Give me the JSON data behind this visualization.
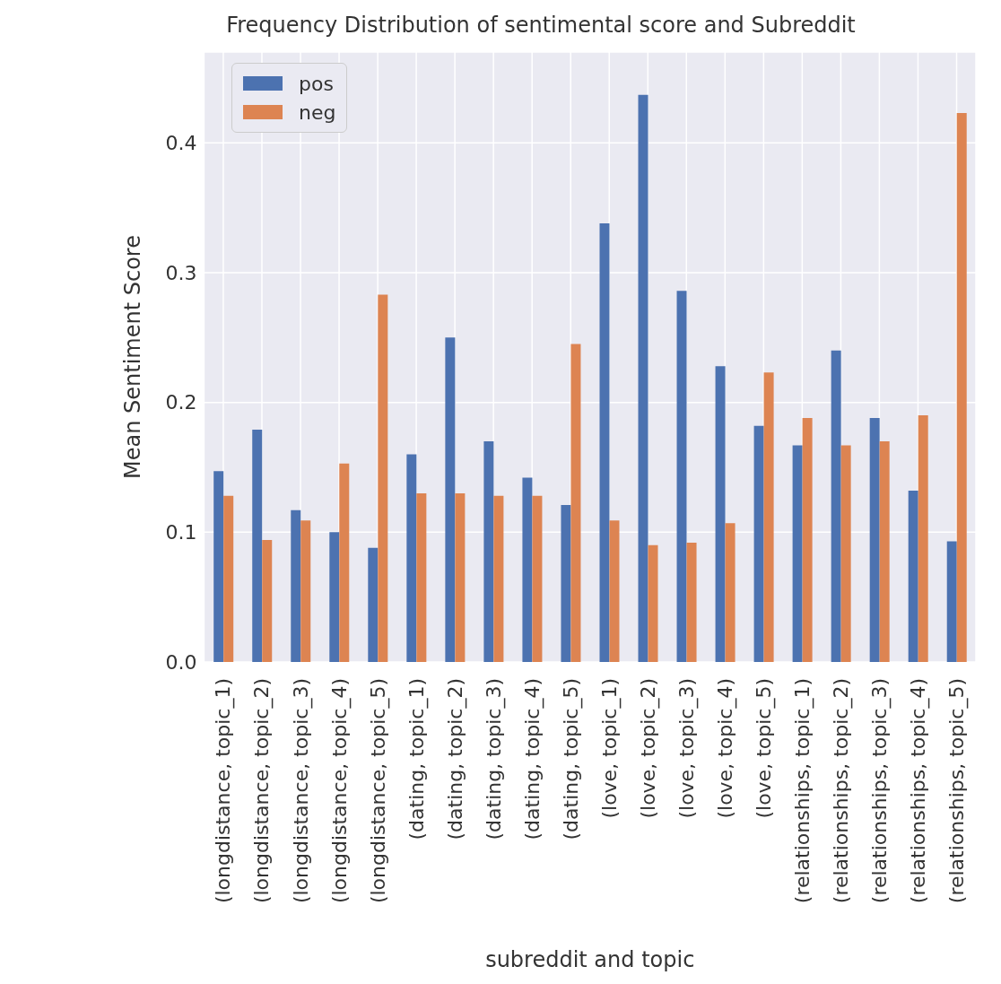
{
  "chart_data": {
    "type": "bar",
    "title": "Frequency Distribution of sentimental score and Subreddit",
    "xlabel": "subreddit and topic",
    "ylabel": "Mean Sentiment Score",
    "categories": [
      "(longdistance, topic_1)",
      "(longdistance, topic_2)",
      "(longdistance, topic_3)",
      "(longdistance, topic_4)",
      "(longdistance, topic_5)",
      "(dating, topic_1)",
      "(dating, topic_2)",
      "(dating, topic_3)",
      "(dating, topic_4)",
      "(dating, topic_5)",
      "(love, topic_1)",
      "(love, topic_2)",
      "(love, topic_3)",
      "(love, topic_4)",
      "(love, topic_5)",
      "(relationships, topic_1)",
      "(relationships, topic_2)",
      "(relationships, topic_3)",
      "(relationships, topic_4)",
      "(relationships, topic_5)"
    ],
    "series": [
      {
        "name": "pos",
        "color": "#4c72b0",
        "values": [
          0.147,
          0.179,
          0.117,
          0.1,
          0.088,
          0.16,
          0.25,
          0.17,
          0.142,
          0.121,
          0.338,
          0.437,
          0.286,
          0.228,
          0.182,
          0.167,
          0.24,
          0.188,
          0.132,
          0.093
        ]
      },
      {
        "name": "neg",
        "color": "#dd8452",
        "values": [
          0.128,
          0.094,
          0.109,
          0.153,
          0.283,
          0.13,
          0.13,
          0.128,
          0.128,
          0.245,
          0.109,
          0.09,
          0.092,
          0.107,
          0.223,
          0.188,
          0.167,
          0.17,
          0.19,
          0.423
        ]
      }
    ],
    "ylim": [
      0,
      0.47
    ],
    "yticks": [
      {
        "value": 0,
        "label": "0.0"
      },
      0.1,
      0.2,
      0.3,
      0.4
    ],
    "grid": true,
    "legend": "top left"
  }
}
